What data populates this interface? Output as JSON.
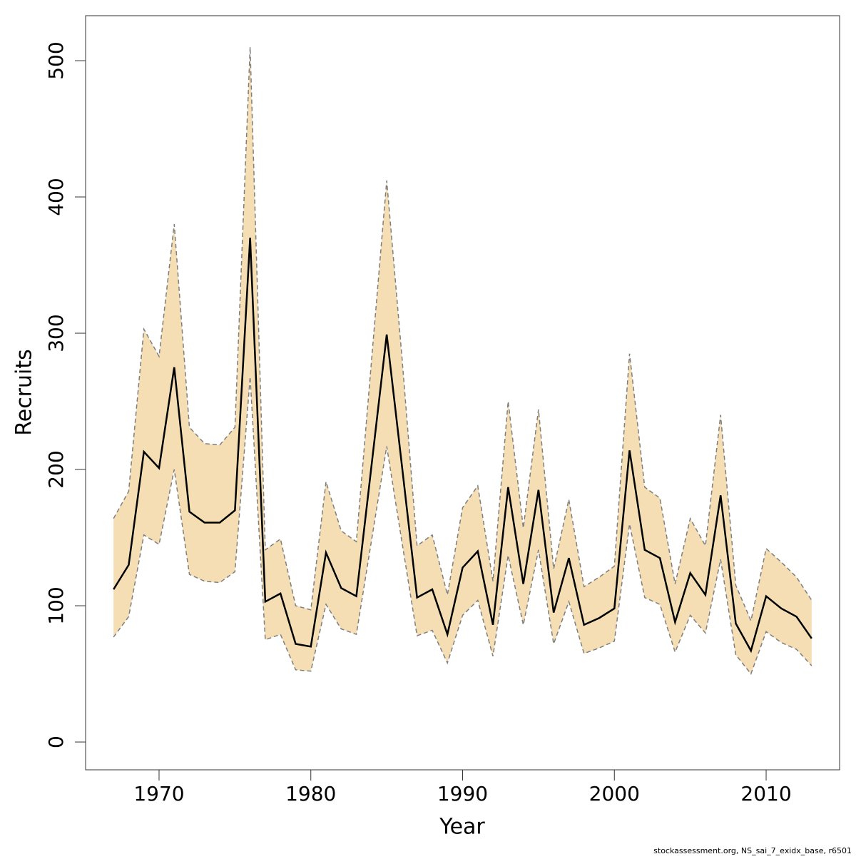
{
  "chart_data": {
    "type": "line",
    "xlabel": "Year",
    "ylabel": "Recruits",
    "footnote": "stockassessment.org, NS_sai_7_exidx_base, r6501",
    "x": [
      1967,
      1968,
      1969,
      1970,
      1971,
      1972,
      1973,
      1974,
      1975,
      1976,
      1977,
      1978,
      1979,
      1980,
      1981,
      1982,
      1983,
      1984,
      1985,
      1986,
      1987,
      1988,
      1989,
      1990,
      1991,
      1992,
      1993,
      1994,
      1995,
      1996,
      1997,
      1998,
      1999,
      2000,
      2001,
      2002,
      2003,
      2004,
      2005,
      2006,
      2007,
      2008,
      2009,
      2010,
      2011,
      2012,
      2013
    ],
    "values": [
      112,
      130,
      213,
      201,
      275,
      169,
      161,
      161,
      170,
      370,
      103,
      109,
      72,
      70,
      139,
      113,
      107,
      203,
      299,
      203,
      106,
      112,
      79,
      128,
      140,
      86,
      187,
      116,
      185,
      95,
      135,
      86,
      91,
      98,
      214,
      141,
      135,
      88,
      124,
      108,
      181,
      87,
      67,
      107,
      98,
      92,
      76
    ],
    "lower": [
      77,
      92,
      152,
      145,
      200,
      123,
      118,
      117,
      125,
      268,
      75,
      79,
      53,
      52,
      101,
      83,
      79,
      148,
      217,
      147,
      78,
      82,
      58,
      93,
      104,
      63,
      137,
      86,
      141,
      72,
      103,
      65,
      69,
      74,
      160,
      106,
      101,
      66,
      93,
      80,
      134,
      64,
      50,
      81,
      73,
      68,
      56
    ],
    "upper": [
      164,
      184,
      303,
      283,
      380,
      231,
      219,
      218,
      231,
      510,
      141,
      149,
      100,
      97,
      191,
      155,
      147,
      280,
      412,
      283,
      144,
      152,
      108,
      172,
      188,
      118,
      250,
      157,
      244,
      127,
      178,
      114,
      121,
      129,
      285,
      187,
      179,
      116,
      164,
      144,
      240,
      115,
      89,
      142,
      132,
      121,
      104
    ],
    "color": "#000000",
    "band_color": "#f5deb3",
    "bound_color": "#7f7f7f",
    "xlim": [
      1965.16,
      2014.84
    ],
    "ylim": [
      -20.4,
      533
    ],
    "xticks": [
      1970,
      1980,
      1990,
      2000,
      2010
    ],
    "yticks": [
      0,
      100,
      200,
      300,
      400,
      500
    ]
  }
}
